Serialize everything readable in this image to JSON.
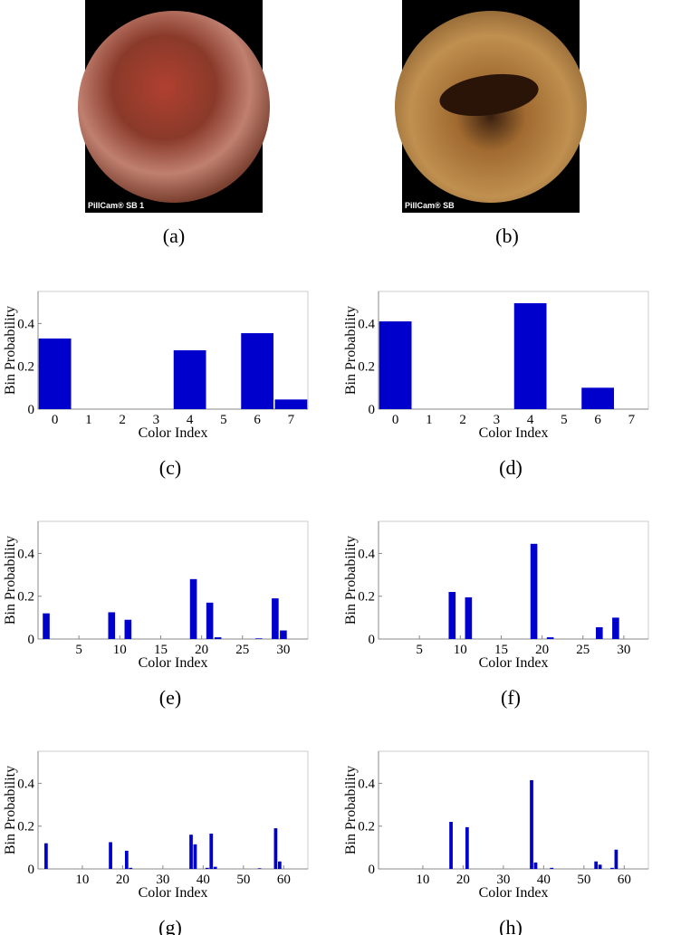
{
  "images": [
    {
      "label": "PillCam® SB 1",
      "caption": "(a)"
    },
    {
      "label": "PillCam® SB",
      "caption": "(b)"
    }
  ],
  "chart_data": [
    {
      "type": "bar",
      "caption": "(c)",
      "xlabel": "Color Index",
      "ylabel": "Bin Probability",
      "color": "#0000cc",
      "categories": [
        "0",
        "1",
        "2",
        "3",
        "4",
        "5",
        "6",
        "7"
      ],
      "values": [
        0.33,
        0,
        0,
        0,
        0.275,
        0,
        0.355,
        0.045
      ],
      "ylim": [
        0,
        0.55
      ],
      "yticks": [
        0,
        0.2,
        0.4
      ]
    },
    {
      "type": "bar",
      "caption": "(d)",
      "xlabel": "Color Index",
      "ylabel": "Bin Probability",
      "color": "#0000cc",
      "categories": [
        "0",
        "1",
        "2",
        "3",
        "4",
        "5",
        "6",
        "7"
      ],
      "values": [
        0.41,
        0,
        0,
        0,
        0.495,
        0,
        0.1,
        0
      ],
      "ylim": [
        0,
        0.55
      ],
      "yticks": [
        0,
        0.2,
        0.4
      ]
    },
    {
      "type": "bar",
      "caption": "(e)",
      "xlabel": "Color Index",
      "ylabel": "Bin Probability",
      "color": "#0000cc",
      "x": [
        1,
        9,
        11,
        19,
        21,
        22,
        27,
        29,
        30
      ],
      "values": [
        0.12,
        0.125,
        0.09,
        0.28,
        0.17,
        0.008,
        0.003,
        0.19,
        0.04
      ],
      "xlim": [
        0,
        33
      ],
      "xticks": [
        5,
        10,
        15,
        20,
        25,
        30
      ],
      "ylim": [
        0,
        0.55
      ],
      "yticks": [
        0,
        0.2,
        0.4
      ]
    },
    {
      "type": "bar",
      "caption": "(f)",
      "xlabel": "Color Index",
      "ylabel": "Bin Probability",
      "color": "#0000cc",
      "x": [
        9,
        11,
        19,
        21,
        27,
        29
      ],
      "values": [
        0.22,
        0.195,
        0.445,
        0.008,
        0.055,
        0.1
      ],
      "xlim": [
        0,
        33
      ],
      "xticks": [
        5,
        10,
        15,
        20,
        25,
        30
      ],
      "ylim": [
        0,
        0.55
      ],
      "yticks": [
        0,
        0.2,
        0.4
      ]
    },
    {
      "type": "bar",
      "caption": "(g)",
      "xlabel": "Color Index",
      "ylabel": "Bin Probability",
      "color": "#0000cc",
      "x": [
        1,
        17,
        21,
        22,
        37,
        38,
        41,
        42,
        43,
        54,
        58,
        59
      ],
      "values": [
        0.12,
        0.125,
        0.085,
        0.005,
        0.16,
        0.115,
        0.005,
        0.165,
        0.01,
        0.003,
        0.19,
        0.035
      ],
      "xlim": [
        -1,
        66
      ],
      "xticks": [
        10,
        20,
        30,
        40,
        50,
        60
      ],
      "ylim": [
        0,
        0.55
      ],
      "yticks": [
        0,
        0.2,
        0.4
      ]
    },
    {
      "type": "bar",
      "caption": "(h)",
      "xlabel": "Color Index",
      "ylabel": "Bin Probability",
      "color": "#0000cc",
      "x": [
        17,
        21,
        37,
        38,
        42,
        53,
        54,
        57,
        58
      ],
      "values": [
        0.22,
        0.195,
        0.415,
        0.03,
        0.005,
        0.035,
        0.02,
        0.005,
        0.09
      ],
      "xlim": [
        -1,
        66
      ],
      "xticks": [
        10,
        20,
        30,
        40,
        50,
        60
      ],
      "ylim": [
        0,
        0.55
      ],
      "yticks": [
        0,
        0.2,
        0.4
      ]
    }
  ]
}
